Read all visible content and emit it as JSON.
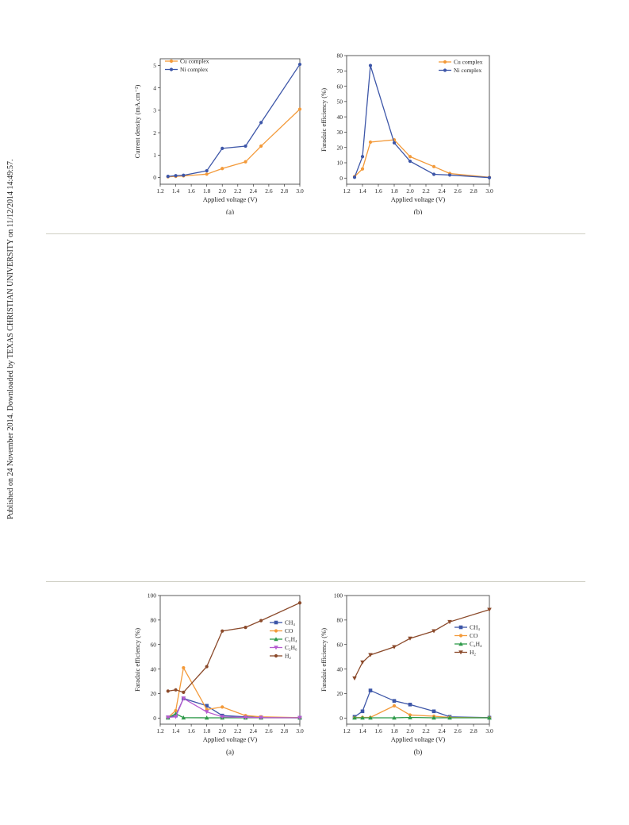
{
  "side_note": "Published on 24 November 2014. Downloaded by TEXAS CHRISTIAN UNIVERSITY on 11/12/2014 14:49:57.",
  "chart_data": [
    {
      "type": "line",
      "caption": "(a)",
      "xlabel": "Applied voltage (V)",
      "ylabel": "Current density (mA.cm⁻²)",
      "xlim": [
        1.2,
        3.0
      ],
      "ylim": [
        -0.3,
        5.3
      ],
      "xticks": [
        1.2,
        1.4,
        1.6,
        1.8,
        2.0,
        2.2,
        2.4,
        2.6,
        2.8,
        3.0
      ],
      "yticks": [
        0,
        1,
        2,
        3,
        4,
        5
      ],
      "x_decimals": 1,
      "y_decimals": 0,
      "legend_position": "top-left",
      "series": [
        {
          "name": "Cu complex",
          "color": "#f39a3a",
          "marker": "circle",
          "x": [
            1.3,
            1.4,
            1.5,
            1.8,
            2.0,
            2.3,
            2.5,
            3.0
          ],
          "y": [
            0.03,
            0.05,
            0.07,
            0.15,
            0.4,
            0.7,
            1.4,
            3.05
          ]
        },
        {
          "name": "Ni complex",
          "color": "#3d56a8",
          "marker": "circle",
          "x": [
            1.3,
            1.4,
            1.5,
            1.8,
            2.0,
            2.3,
            2.5,
            3.0
          ],
          "y": [
            0.05,
            0.08,
            0.1,
            0.3,
            1.3,
            1.4,
            2.45,
            5.05
          ]
        }
      ]
    },
    {
      "type": "line",
      "caption": "(b)",
      "xlabel": "Applied voltage (V)",
      "ylabel": "Faradaic efficiency (%)",
      "xlim": [
        1.2,
        3.0
      ],
      "ylim": [
        -4,
        80
      ],
      "xticks": [
        1.2,
        1.4,
        1.6,
        1.8,
        2.0,
        2.2,
        2.4,
        2.6,
        2.8,
        3.0
      ],
      "yticks": [
        0,
        10,
        20,
        30,
        40,
        50,
        60,
        70,
        80
      ],
      "x_decimals": 1,
      "y_decimals": 0,
      "legend_position": "top-right",
      "series": [
        {
          "name": "Cu complex",
          "color": "#f39a3a",
          "marker": "circle",
          "x": [
            1.3,
            1.4,
            1.5,
            1.8,
            2.0,
            2.3,
            2.5,
            3.0
          ],
          "y": [
            1,
            6,
            23.5,
            25,
            14,
            7.5,
            3,
            0.5
          ]
        },
        {
          "name": "Ni complex",
          "color": "#3d56a8",
          "marker": "circle",
          "x": [
            1.3,
            1.4,
            1.5,
            1.8,
            2.0,
            2.3,
            2.5,
            3.0
          ],
          "y": [
            0.5,
            14,
            73.5,
            23,
            11,
            2.5,
            2,
            0.3
          ]
        }
      ]
    },
    {
      "type": "line",
      "caption": "(a)",
      "xlabel": "Applied voltage (V)",
      "ylabel": "Faradaic efficiency (%)",
      "xlim": [
        1.2,
        3.0
      ],
      "ylim": [
        -5,
        100
      ],
      "xticks": [
        1.2,
        1.4,
        1.6,
        1.8,
        2.0,
        2.2,
        2.4,
        2.6,
        2.8,
        3.0
      ],
      "yticks": [
        0,
        20,
        40,
        60,
        80,
        100
      ],
      "x_decimals": 1,
      "y_decimals": 0,
      "legend_position": "right",
      "series": [
        {
          "name": "CH₄",
          "color": "#3d56a8",
          "marker": "square",
          "x": [
            1.3,
            1.4,
            1.5,
            1.8,
            2.0,
            2.3,
            2.5,
            3.0
          ],
          "y": [
            0.5,
            2,
            16,
            10,
            2,
            1,
            0.5,
            0.2
          ]
        },
        {
          "name": "CO",
          "color": "#f39a3a",
          "marker": "circle",
          "x": [
            1.3,
            1.4,
            1.5,
            1.8,
            2.0,
            2.3,
            2.5,
            3.0
          ],
          "y": [
            0.5,
            6,
            41,
            7,
            9,
            2,
            1,
            0.3
          ]
        },
        {
          "name": "C₂H₄",
          "color": "#2f9a4a",
          "marker": "triangle-up",
          "x": [
            1.3,
            1.4,
            1.5,
            1.8,
            2.0,
            2.3,
            2.5,
            3.0
          ],
          "y": [
            0.2,
            3.5,
            0.3,
            0.2,
            0.2,
            0.2,
            0.2,
            0.2
          ]
        },
        {
          "name": "C₂H₆",
          "color": "#b55bd0",
          "marker": "triangle-down",
          "x": [
            1.3,
            1.4,
            1.5,
            1.8,
            2.0,
            2.3,
            2.5,
            3.0
          ],
          "y": [
            0.5,
            1,
            16,
            5,
            1,
            0.5,
            0.3,
            0.2
          ]
        },
        {
          "name": "H₂",
          "color": "#8b4a2b",
          "marker": "circle",
          "x": [
            1.3,
            1.4,
            1.5,
            1.8,
            2.0,
            2.3,
            2.5,
            3.0
          ],
          "y": [
            22,
            23,
            21,
            42,
            71,
            74,
            79.5,
            94
          ]
        }
      ]
    },
    {
      "type": "line",
      "caption": "(b)",
      "xlabel": "Applied voltage (V)",
      "ylabel": "Faradaic efficiency (%)",
      "xlim": [
        1.2,
        3.0
      ],
      "ylim": [
        -5,
        100
      ],
      "xticks": [
        1.2,
        1.4,
        1.6,
        1.8,
        2.0,
        2.2,
        2.4,
        2.6,
        2.8,
        3.0
      ],
      "yticks": [
        0,
        20,
        40,
        60,
        80,
        100
      ],
      "x_decimals": 1,
      "y_decimals": 0,
      "legend_position": "center-right",
      "series": [
        {
          "name": "CH₄",
          "color": "#3d56a8",
          "marker": "square",
          "x": [
            1.3,
            1.4,
            1.5,
            1.8,
            2.0,
            2.3,
            2.5,
            3.0
          ],
          "y": [
            1,
            5.5,
            22.5,
            14,
            11,
            5.5,
            1,
            0.3
          ]
        },
        {
          "name": "CO",
          "color": "#f39a3a",
          "marker": "circle",
          "x": [
            1.3,
            1.4,
            1.5,
            1.8,
            2.0,
            2.3,
            2.5,
            3.0
          ],
          "y": [
            0.3,
            0.5,
            0.5,
            10,
            2.5,
            1.5,
            0.5,
            0.2
          ]
        },
        {
          "name": "C₂H₄",
          "color": "#2f9a4a",
          "marker": "triangle-up",
          "x": [
            1.3,
            1.4,
            1.5,
            1.8,
            2.0,
            2.3,
            2.5,
            3.0
          ],
          "y": [
            0.2,
            0.2,
            0.2,
            0.2,
            0.5,
            0.2,
            0.2,
            0.2
          ]
        },
        {
          "name": "H₂",
          "color": "#8b4a2b",
          "marker": "triangle-down",
          "x": [
            1.3,
            1.4,
            1.5,
            1.8,
            2.0,
            2.3,
            2.5,
            3.0
          ],
          "y": [
            32.5,
            45.5,
            51.5,
            58,
            65,
            71,
            78.5,
            88.5
          ]
        }
      ]
    }
  ]
}
